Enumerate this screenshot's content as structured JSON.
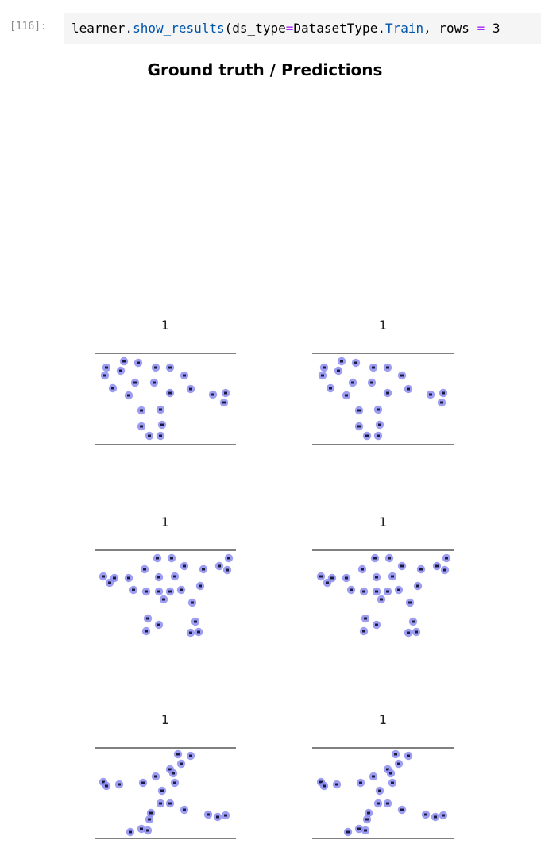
{
  "cell": {
    "prompt": "[116]:",
    "code_tokens": [
      {
        "text": "learner.",
        "kind": "plain"
      },
      {
        "text": "show_results",
        "kind": "attr"
      },
      {
        "text": "(ds_type",
        "kind": "plain"
      },
      {
        "text": "=",
        "kind": "op"
      },
      {
        "text": "DatasetType.",
        "kind": "plain"
      },
      {
        "text": "Train",
        "kind": "attr"
      },
      {
        "text": ", rows ",
        "kind": "plain"
      },
      {
        "text": "=",
        "kind": "op"
      },
      {
        "text": " 3",
        "kind": "plain"
      }
    ]
  },
  "figure": {
    "suptitle": "Ground truth / Predictions",
    "panels": [
      {
        "title": "1",
        "layout": "a"
      },
      {
        "title": "1",
        "layout": "a"
      },
      {
        "title": "1",
        "layout": "b"
      },
      {
        "title": "1",
        "layout": "b"
      },
      {
        "title": "1",
        "layout": "c"
      },
      {
        "title": "1",
        "layout": "c"
      }
    ]
  }
}
